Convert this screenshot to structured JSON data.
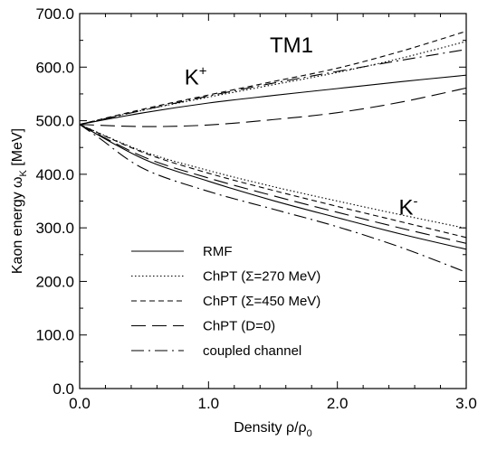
{
  "chart_data": {
    "type": "line",
    "annotation_title": "TM1",
    "xlabel_main": "Density ρ/ρ",
    "xlabel_sub": "0",
    "ylabel_main": "Kaon energy ω",
    "ylabel_sub": "K",
    "ylabel_unit": " [MeV]",
    "xlim": [
      0.0,
      3.0
    ],
    "ylim": [
      0.0,
      700.0
    ],
    "x_ticks": [
      "0.0",
      "1.0",
      "2.0",
      "3.0"
    ],
    "y_ticks": [
      "0.0",
      "100.0",
      "200.0",
      "300.0",
      "400.0",
      "500.0",
      "600.0",
      "700.0"
    ],
    "grid": false,
    "legend_position": "bottom-left",
    "branch_labels": [
      {
        "name": "K",
        "superscript": "+",
        "x": 0.9,
        "y": 568
      },
      {
        "name": "K",
        "superscript": "-",
        "x": 2.55,
        "y": 325
      }
    ],
    "series": [
      {
        "name": "RMF",
        "style": "solid",
        "kplus": {
          "x": [
            0.0,
            0.5,
            1.0,
            1.5,
            2.0,
            2.5,
            3.0
          ],
          "y": [
            493,
            515,
            533,
            547,
            560,
            573,
            585
          ]
        },
        "kminus": {
          "x": [
            0.0,
            0.5,
            1.0,
            1.5,
            2.0,
            2.5,
            3.0
          ],
          "y": [
            493,
            428,
            387,
            351,
            319,
            288,
            260
          ]
        }
      },
      {
        "name": "ChPT (Σ=270 MeV)",
        "style": "dotted",
        "kplus": {
          "x": [
            0.0,
            0.5,
            1.0,
            1.5,
            2.0,
            2.5,
            3.0
          ],
          "y": [
            493,
            520,
            544,
            567,
            590,
            617,
            648
          ]
        },
        "kminus": {
          "x": [
            0.0,
            0.5,
            1.0,
            1.5,
            2.0,
            2.5,
            3.0
          ],
          "y": [
            493,
            442,
            407,
            377,
            350,
            324,
            299
          ]
        }
      },
      {
        "name": "ChPT (Σ=450 MeV)",
        "style": "short-dash",
        "kplus": {
          "x": [
            0.0,
            0.5,
            1.0,
            1.5,
            2.0,
            2.5,
            3.0
          ],
          "y": [
            493,
            522,
            548,
            573,
            598,
            630,
            667
          ]
        },
        "kminus": {
          "x": [
            0.0,
            0.5,
            1.0,
            1.5,
            2.0,
            2.5,
            3.0
          ],
          "y": [
            493,
            440,
            402,
            370,
            340,
            311,
            282
          ]
        }
      },
      {
        "name": "ChPT (D=0)",
        "style": "long-dash",
        "kplus": {
          "x": [
            0.0,
            0.5,
            1.0,
            1.5,
            2.0,
            2.5,
            3.0
          ],
          "y": [
            493,
            489,
            492,
            502,
            515,
            535,
            561
          ]
        },
        "kminus": {
          "x": [
            0.0,
            0.5,
            1.0,
            1.5,
            2.0,
            2.5,
            3.0
          ],
          "y": [
            493,
            432,
            393,
            360,
            329,
            299,
            271
          ]
        }
      },
      {
        "name": "coupled channel",
        "style": "dash-dot",
        "kplus": {
          "x": [
            0.0,
            0.5,
            1.0,
            1.5,
            2.0,
            2.5,
            3.0
          ],
          "y": [
            493,
            520,
            546,
            570,
            592,
            613,
            633
          ]
        },
        "kminus": {
          "x": [
            0.0,
            0.15,
            0.5,
            1.0,
            1.5,
            2.0,
            2.5,
            3.0
          ],
          "y": [
            493,
            468,
            410,
            368,
            335,
            302,
            263,
            217
          ]
        }
      }
    ]
  }
}
